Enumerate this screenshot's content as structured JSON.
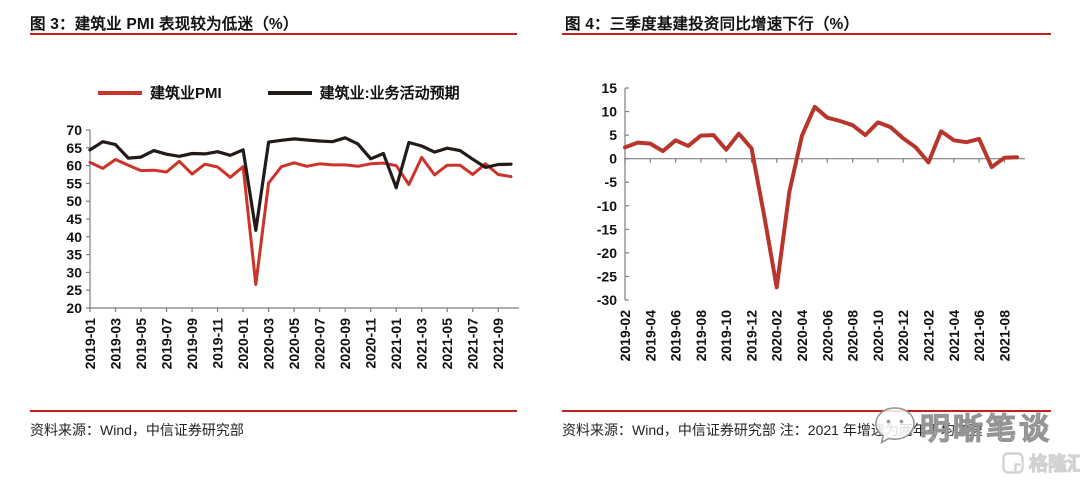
{
  "figures": [
    {
      "title": "图 3：建筑业 PMI 表现较为低迷（%）",
      "source": "资料来源：Wind，中信证券研究部"
    },
    {
      "title": "图 4：三季度基建投资同比增速下行（%）",
      "source": "资料来源：Wind，中信证券研究部 注：2021 年增速为两年平均增速"
    }
  ],
  "watermark": {
    "text": "明晰笔谈",
    "icon": "chat-bubble-icon"
  },
  "logo": {
    "text": "格隆汇",
    "icon": "g-square-icon"
  },
  "colors": {
    "accent_rule": "#c2201a",
    "pmi_red": "#cc3329",
    "expectation_black": "#221b17",
    "infra_red": "#b8352b",
    "axis_gray": "#7f7f7f",
    "text": "#111111",
    "watermark_gray": "#949494"
  },
  "chart_data": [
    {
      "type": "line",
      "title": "图 3：建筑业 PMI 表现较为低迷（%）",
      "xlabel": "",
      "ylabel": "",
      "ylim": [
        20,
        70
      ],
      "ytick_step": 5,
      "xtick_every": 2,
      "base_value": 20,
      "ytick_side": "out",
      "grid": false,
      "legend_position": "top",
      "axis_color": "#7f7f7f",
      "x": [
        "2019-01",
        "2019-02",
        "2019-03",
        "2019-04",
        "2019-05",
        "2019-06",
        "2019-07",
        "2019-08",
        "2019-09",
        "2019-10",
        "2019-11",
        "2019-12",
        "2020-01",
        "2020-02",
        "2020-03",
        "2020-04",
        "2020-05",
        "2020-06",
        "2020-07",
        "2020-08",
        "2020-09",
        "2020-10",
        "2020-11",
        "2020-12",
        "2021-01",
        "2021-02",
        "2021-03",
        "2021-04",
        "2021-05",
        "2021-06",
        "2021-07",
        "2021-08",
        "2021-09",
        "2021-10"
      ],
      "series": [
        {
          "name": "建筑业PMI",
          "color": "#cc3329",
          "width": 3,
          "values": [
            60.9,
            59.2,
            61.7,
            60.1,
            58.6,
            58.7,
            58.2,
            61.2,
            57.6,
            60.4,
            59.6,
            56.7,
            59.7,
            26.6,
            55.1,
            59.7,
            60.8,
            59.8,
            60.5,
            60.2,
            60.2,
            59.8,
            60.5,
            60.7,
            60.0,
            54.7,
            62.3,
            57.4,
            60.1,
            60.1,
            57.5,
            60.5,
            57.5,
            56.9
          ]
        },
        {
          "name": "建筑业:业务活动预期",
          "color": "#221b17",
          "width": 3.2,
          "values": [
            64.4,
            66.7,
            65.9,
            62.1,
            62.4,
            64.2,
            63.2,
            62.6,
            63.4,
            63.3,
            63.9,
            62.9,
            64.4,
            41.8,
            66.6,
            67.1,
            67.5,
            67.2,
            66.9,
            66.7,
            67.8,
            66.1,
            61.9,
            63.4,
            53.8,
            66.5,
            65.5,
            63.8,
            64.9,
            64.2,
            61.8,
            59.5,
            60.3,
            60.4
          ]
        }
      ]
    },
    {
      "type": "line",
      "title": "图 4：三季度基建投资同比增速下行（%）",
      "xlabel": "",
      "ylabel": "",
      "ylim": [
        -30,
        15
      ],
      "ytick_step": 5,
      "xtick_every": 2,
      "base_value": 0,
      "ytick_side": "in",
      "grid": false,
      "legend_position": "none",
      "axis_color": "#7f7f7f",
      "x": [
        "2019-02",
        "2019-03",
        "2019-04",
        "2019-05",
        "2019-06",
        "2019-07",
        "2019-08",
        "2019-09",
        "2019-10",
        "2019-11",
        "2019-12",
        "2020-01",
        "2020-02",
        "2020-03",
        "2020-04",
        "2020-05",
        "2020-06",
        "2020-07",
        "2020-08",
        "2020-09",
        "2020-10",
        "2020-11",
        "2020-12",
        "2021-01",
        "2021-02",
        "2021-03",
        "2021-04",
        "2021-05",
        "2021-06",
        "2021-07",
        "2021-08",
        "2021-09"
      ],
      "series": [
        {
          "name": "",
          "color": "#b8352b",
          "width": 4,
          "values": [
            2.4,
            3.4,
            3.2,
            1.6,
            3.9,
            2.7,
            4.9,
            5.0,
            1.9,
            5.3,
            2.2,
            -12.0,
            -27.3,
            -7.0,
            4.9,
            11.0,
            8.7,
            8.0,
            7.1,
            5.0,
            7.7,
            6.7,
            4.3,
            2.4,
            -0.8,
            5.8,
            3.9,
            3.5,
            4.2,
            -1.8,
            0.2,
            0.3
          ]
        }
      ]
    }
  ]
}
